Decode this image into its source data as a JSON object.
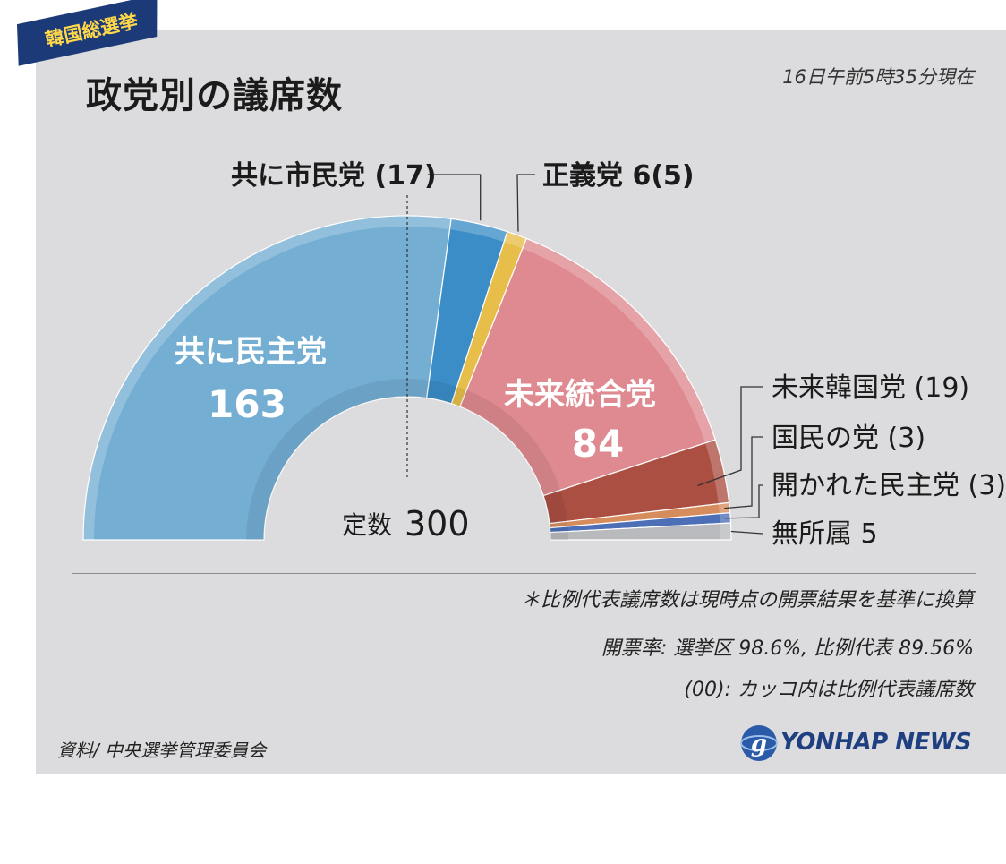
{
  "tag": "韓国総選挙",
  "title": "政党別の議席数",
  "timestamp": "16日午前5時35分現在",
  "total_label": "定数",
  "total": 300,
  "notes": [
    "＊比例代表議席数は現時点の開票結果を基準に換算",
    "開票率: 選挙区 98.6%, 比例代表 89.56%",
    "(00): カッコ内は比例代表議席数"
  ],
  "source": "資料/ 中央選挙管理委員会",
  "logo": "YONHAP NEWS",
  "chart_data": {
    "type": "pie",
    "variant": "semicircle",
    "title": "政党別の議席数",
    "total": 300,
    "series": [
      {
        "name": "共に民主党",
        "value": 163,
        "color": "#74aed3",
        "label": "共に民主党",
        "value_label": "163"
      },
      {
        "name": "共に市民党",
        "value": 17,
        "color": "#3b8dc7",
        "label": "共に市民党 (17)"
      },
      {
        "name": "正義党",
        "value": 6,
        "color": "#e8be4a",
        "label": "正義党 6(5)"
      },
      {
        "name": "未来統合党",
        "value": 84,
        "color": "#de8a90",
        "label": "未来統合党",
        "value_label": "84"
      },
      {
        "name": "未来韓国党",
        "value": 19,
        "color": "#ac4f43",
        "label": "未来韓国党 (19)"
      },
      {
        "name": "国民の党",
        "value": 3,
        "color": "#d78c5e",
        "label": "国民の党 (3)"
      },
      {
        "name": "開かれた民主党",
        "value": 3,
        "color": "#4c6fb8",
        "label": "開かれた民主党 (3)"
      },
      {
        "name": "無所属",
        "value": 5,
        "color": "#b8babe",
        "label": "無所属 5"
      }
    ]
  }
}
